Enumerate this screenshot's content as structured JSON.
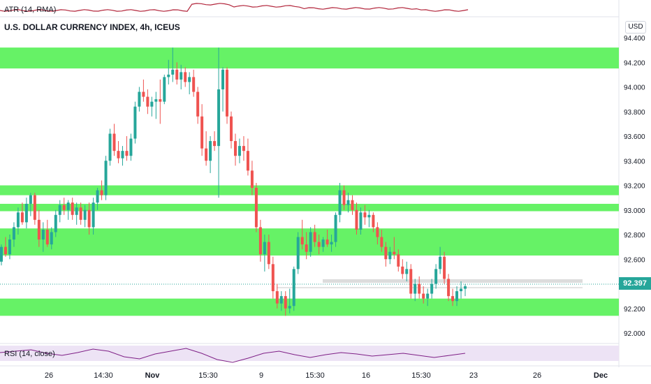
{
  "indicators": {
    "atr_label": "ATR (14, RMA)",
    "rsi_label": "RSI (14, close)"
  },
  "header": {
    "title": "U.S. DOLLAR CURRENCY INDEX, 4h, ICEUS",
    "currency": "USD"
  },
  "last_price": "92.397",
  "colors": {
    "up": "#26a69a",
    "down": "#ef5350",
    "zone": "#66f266",
    "atr_line": "#b2243a",
    "rsi_line": "#7e1f86",
    "rsi_band": "#ede3f5"
  },
  "chart_data": {
    "type": "candlestick",
    "title": "U.S. DOLLAR CURRENCY INDEX, 4h, ICEUS",
    "y_ticks": [
      "94.400",
      "94.200",
      "94.000",
      "93.800",
      "93.600",
      "93.400",
      "93.200",
      "93.000",
      "92.800",
      "92.600",
      "92.400",
      "92.200",
      "92.000"
    ],
    "ylim": [
      91.93,
      94.48
    ],
    "x_ticks": [
      "26",
      "14:30",
      "Nov",
      "15:30",
      "9",
      "15:30",
      "16",
      "15:30",
      "23",
      "26",
      "Dec"
    ],
    "zones": [
      [
        94.15,
        94.32
      ],
      [
        93.12,
        93.2
      ],
      [
        92.99,
        93.05
      ],
      [
        92.63,
        92.85
      ],
      [
        92.14,
        92.28
      ]
    ],
    "last_price": 92.397,
    "grid": false,
    "candles": [
      [
        92.58,
        92.72,
        92.55,
        92.7
      ],
      [
        92.7,
        92.78,
        92.62,
        92.64
      ],
      [
        92.64,
        92.8,
        92.6,
        92.76
      ],
      [
        92.76,
        92.9,
        92.7,
        92.86
      ],
      [
        92.86,
        93.02,
        92.8,
        92.98
      ],
      [
        92.98,
        93.06,
        92.88,
        92.9
      ],
      [
        92.9,
        93.1,
        92.85,
        93.05
      ],
      [
        93.05,
        93.14,
        92.95,
        93.12
      ],
      [
        93.12,
        93.14,
        92.88,
        92.92
      ],
      [
        92.92,
        93.0,
        92.7,
        92.76
      ],
      [
        92.76,
        92.9,
        92.66,
        92.84
      ],
      [
        92.84,
        92.92,
        92.7,
        92.72
      ],
      [
        92.72,
        92.86,
        92.68,
        92.82
      ],
      [
        92.82,
        93.0,
        92.78,
        92.96
      ],
      [
        92.96,
        93.08,
        92.9,
        93.04
      ],
      [
        93.04,
        93.1,
        92.96,
        93.0
      ],
      [
        93.0,
        93.08,
        92.92,
        93.06
      ],
      [
        93.06,
        93.1,
        92.92,
        92.96
      ],
      [
        92.96,
        93.06,
        92.88,
        93.02
      ],
      [
        93.02,
        93.06,
        92.88,
        92.92
      ],
      [
        92.92,
        93.04,
        92.86,
        93.0
      ],
      [
        93.0,
        93.06,
        92.8,
        92.86
      ],
      [
        92.86,
        93.1,
        92.8,
        93.06
      ],
      [
        93.06,
        93.18,
        93.0,
        93.16
      ],
      [
        93.16,
        93.24,
        93.08,
        93.12
      ],
      [
        93.12,
        93.44,
        93.08,
        93.4
      ],
      [
        93.4,
        93.66,
        93.36,
        93.62
      ],
      [
        93.62,
        93.7,
        93.44,
        93.48
      ],
      [
        93.48,
        93.56,
        93.38,
        93.42
      ],
      [
        93.42,
        93.52,
        93.36,
        93.48
      ],
      [
        93.48,
        93.6,
        93.4,
        93.44
      ],
      [
        93.44,
        93.62,
        93.4,
        93.58
      ],
      [
        93.58,
        93.88,
        93.54,
        93.84
      ],
      [
        93.84,
        94.0,
        93.8,
        93.96
      ],
      [
        93.96,
        94.06,
        93.88,
        93.92
      ],
      [
        93.92,
        93.98,
        93.78,
        93.84
      ],
      [
        93.84,
        93.92,
        93.76,
        93.88
      ],
      [
        93.88,
        93.96,
        93.74,
        93.9
      ],
      [
        93.9,
        94.06,
        93.7,
        93.88
      ],
      [
        93.88,
        94.1,
        93.86,
        94.08
      ],
      [
        94.08,
        94.22,
        94.02,
        94.1
      ],
      [
        94.1,
        94.32,
        94.04,
        94.14
      ],
      [
        94.14,
        94.2,
        94.02,
        94.06
      ],
      [
        94.06,
        94.18,
        93.98,
        94.12
      ],
      [
        94.12,
        94.16,
        94.0,
        94.04
      ],
      [
        94.04,
        94.12,
        93.94,
        94.08
      ],
      [
        94.08,
        94.14,
        93.92,
        93.96
      ],
      [
        93.96,
        94.0,
        93.7,
        93.76
      ],
      [
        93.76,
        93.86,
        93.44,
        93.5
      ],
      [
        93.5,
        93.64,
        93.36,
        93.4
      ],
      [
        93.4,
        93.6,
        93.3,
        93.56
      ],
      [
        93.56,
        93.64,
        93.48,
        93.52
      ],
      [
        93.52,
        94.32,
        93.1,
        93.98
      ],
      [
        93.98,
        94.16,
        93.8,
        94.14
      ],
      [
        94.14,
        94.16,
        93.7,
        93.76
      ],
      [
        93.76,
        93.8,
        93.5,
        93.56
      ],
      [
        93.56,
        93.62,
        93.36,
        93.44
      ],
      [
        93.44,
        93.58,
        93.38,
        93.52
      ],
      [
        93.52,
        93.6,
        93.4,
        93.48
      ],
      [
        93.48,
        93.58,
        93.28,
        93.32
      ],
      [
        93.32,
        93.4,
        93.12,
        93.18
      ],
      [
        93.18,
        93.22,
        92.82,
        92.86
      ],
      [
        92.86,
        92.92,
        92.58,
        92.64
      ],
      [
        92.64,
        92.8,
        92.5,
        92.74
      ],
      [
        92.74,
        92.8,
        92.52,
        92.56
      ],
      [
        92.56,
        92.62,
        92.28,
        92.34
      ],
      [
        92.34,
        92.4,
        92.2,
        92.24
      ],
      [
        92.24,
        92.34,
        92.18,
        92.3
      ],
      [
        92.3,
        92.34,
        92.14,
        92.2
      ],
      [
        92.2,
        92.36,
        92.16,
        92.22
      ],
      [
        92.22,
        92.54,
        92.18,
        92.52
      ],
      [
        92.52,
        92.82,
        92.48,
        92.78
      ],
      [
        92.78,
        92.92,
        92.68,
        92.72
      ],
      [
        92.72,
        92.82,
        92.6,
        92.66
      ],
      [
        92.66,
        92.86,
        92.62,
        92.82
      ],
      [
        92.82,
        92.88,
        92.7,
        92.74
      ],
      [
        92.74,
        92.8,
        92.64,
        92.7
      ],
      [
        92.7,
        92.78,
        92.66,
        92.76
      ],
      [
        92.76,
        92.84,
        92.7,
        92.72
      ],
      [
        92.72,
        92.8,
        92.66,
        92.74
      ],
      [
        92.74,
        92.98,
        92.7,
        92.96
      ],
      [
        92.96,
        93.22,
        92.9,
        93.16
      ],
      [
        93.16,
        93.2,
        93.0,
        93.04
      ],
      [
        93.04,
        93.14,
        92.98,
        93.08
      ],
      [
        93.08,
        93.12,
        92.96,
        93.0
      ],
      [
        93.0,
        93.06,
        92.8,
        92.84
      ],
      [
        92.84,
        93.02,
        92.8,
        92.98
      ],
      [
        92.98,
        93.04,
        92.88,
        92.94
      ],
      [
        92.94,
        93.0,
        92.86,
        92.96
      ],
      [
        92.96,
        92.98,
        92.82,
        92.86
      ],
      [
        92.86,
        92.9,
        92.72,
        92.78
      ],
      [
        92.78,
        92.84,
        92.66,
        92.7
      ],
      [
        92.7,
        92.74,
        92.54,
        92.6
      ],
      [
        92.6,
        92.7,
        92.56,
        92.66
      ],
      [
        92.66,
        92.78,
        92.6,
        92.64
      ],
      [
        92.64,
        92.68,
        92.5,
        92.54
      ],
      [
        92.54,
        92.6,
        92.44,
        92.48
      ],
      [
        92.48,
        92.58,
        92.42,
        92.52
      ],
      [
        92.52,
        92.56,
        92.28,
        92.32
      ],
      [
        92.32,
        92.44,
        92.26,
        92.4
      ],
      [
        92.4,
        92.46,
        92.28,
        92.32
      ],
      [
        92.32,
        92.38,
        92.24,
        92.28
      ],
      [
        92.28,
        92.36,
        92.22,
        92.32
      ],
      [
        92.32,
        92.44,
        92.28,
        92.4
      ],
      [
        92.4,
        92.56,
        92.36,
        92.52
      ],
      [
        92.52,
        92.7,
        92.48,
        92.62
      ],
      [
        92.62,
        92.66,
        92.4,
        92.44
      ],
      [
        92.44,
        92.48,
        92.26,
        92.3
      ],
      [
        92.3,
        92.36,
        92.22,
        92.26
      ],
      [
        92.26,
        92.38,
        92.22,
        92.34
      ],
      [
        92.34,
        92.42,
        92.28,
        92.36
      ],
      [
        92.36,
        92.4,
        92.3,
        92.38
      ]
    ]
  }
}
